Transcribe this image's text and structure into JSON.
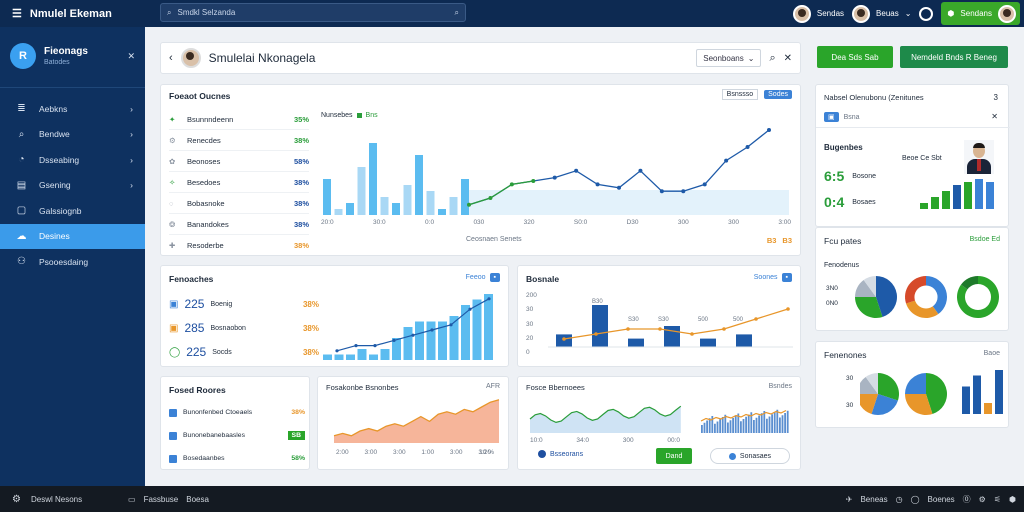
{
  "topbar": {
    "app_title": "Nmulel Ekeman",
    "search_placeholder": "Smdkl Selzanda",
    "user1": "Sendas",
    "user2": "Beuas",
    "green_button": "Sendans"
  },
  "sidebar": {
    "brand_title": "Fieonags",
    "brand_sub": "Batodes",
    "items": [
      {
        "label": "Aebkns",
        "icon": "layers-icon"
      },
      {
        "label": "Bendwe",
        "icon": "search-icon"
      },
      {
        "label": "Dsseabing",
        "icon": "gauge-icon"
      },
      {
        "label": "Gsening",
        "icon": "briefcase-icon"
      },
      {
        "label": "Galssiognb",
        "icon": "monitor-icon"
      },
      {
        "label": "Desines",
        "icon": "cloud-icon"
      },
      {
        "label": "Psooesdaing",
        "icon": "users-icon"
      }
    ]
  },
  "header": {
    "title": "Smulelai Nkonagela",
    "select_label": "Seonboans",
    "btn1": "Dea Sds Sab",
    "btn2": "Nemdeld Bnds R Beneg"
  },
  "overview": {
    "title": "Foeaot Oucnes",
    "chip1": "Bsnssso",
    "chip2": "Sodes",
    "rows": [
      {
        "label": "Bsunnndeenn",
        "value": "35%",
        "color": "#2a9d3a"
      },
      {
        "label": "Renecdes",
        "value": "38%",
        "color": "#2a9d3a"
      },
      {
        "label": "Beonoses",
        "value": "58%",
        "color": "#1e4fa0"
      },
      {
        "label": "Besedoes",
        "value": "38%",
        "color": "#1e4fa0"
      },
      {
        "label": "Bobasnoke",
        "value": "38%",
        "color": "#1e4fa0"
      },
      {
        "label": "Banandokes",
        "value": "38%",
        "color": "#1e4fa0"
      },
      {
        "label": "Resoderbe",
        "value": "38%",
        "color": "#e8962a"
      }
    ],
    "legend_a": "Nunsebes",
    "legend_b": "Bns",
    "xlabels": [
      "20:0",
      "30:0",
      "0:0",
      "030",
      "320",
      "S0:0",
      "D30",
      "300",
      "300",
      "3:00"
    ],
    "footer_label": "Ceosnaen Senets",
    "footer_values": [
      "B3",
      "B3"
    ]
  },
  "main_chart": {
    "bars": [
      6,
      1,
      2,
      8,
      12,
      3,
      2,
      5,
      10,
      4,
      1,
      3,
      6
    ],
    "line": [
      3,
      5,
      9,
      10,
      11,
      13,
      9,
      8,
      13,
      7,
      7,
      9,
      16,
      20,
      25
    ]
  },
  "stats": {
    "title": "Fenoaches",
    "chip": "Feeoo",
    "rows": [
      {
        "value": "225",
        "label": "Boenig",
        "pct": "38%",
        "pct_color": "#e8962a"
      },
      {
        "value": "285",
        "label": "Bosnaobon",
        "pct": "38%",
        "pct_color": "#e8962a"
      },
      {
        "value": "225",
        "label": "Socds",
        "pct": "38%",
        "pct_color": "#e8962a"
      }
    ],
    "bars": [
      1,
      1,
      1,
      2,
      1,
      2,
      4,
      6,
      7,
      7,
      7,
      8,
      10,
      11,
      12
    ],
    "line": [
      1,
      2,
      2,
      3,
      4,
      5,
      6,
      9,
      11
    ]
  },
  "combo": {
    "title": "Bosnale",
    "chip": "Soones",
    "ylabels": [
      "200",
      "30",
      "30",
      "20",
      "0"
    ],
    "bar_labels": [
      "B30",
      "S30",
      "S30",
      "500",
      "500"
    ],
    "bars": [
      3,
      10,
      2,
      5,
      2,
      3
    ],
    "line": [
      2,
      3,
      4,
      4,
      3,
      4,
      6,
      8
    ]
  },
  "list": {
    "title": "Fosed Roores",
    "items": [
      {
        "label": "Bunonfenbed Ctoeaels",
        "value": "38%",
        "value_color": "#e8962a"
      },
      {
        "label": "Bunonebanebaasles",
        "value": "SB",
        "value_color": "#fff",
        "badge": true
      },
      {
        "label": "Bosedaanbes",
        "value": "58%",
        "value_color": "#2a9d3a"
      }
    ]
  },
  "area": {
    "title": "Fosakonbe Bsnonbes",
    "chip": "AFR",
    "xlabels": [
      "2:00",
      "3:00",
      "3:00",
      "1:00",
      "3:00",
      "3:20"
    ],
    "footer": "10 %",
    "values": [
      3,
      4,
      3,
      5,
      6,
      5,
      7,
      8,
      7,
      9,
      11,
      9,
      12,
      13,
      12,
      14,
      13,
      15,
      17,
      18
    ]
  },
  "waves": {
    "title": "Fosce Bbernoees",
    "chip": "Bsndes",
    "xlabels": [
      "10:0",
      "34:0",
      "300",
      "00:0"
    ],
    "legend": "Bsseorans",
    "btn_green": "Dand",
    "btn_outline": "Sonasaes"
  },
  "side_top": {
    "title": "Nabsel Olenubonu (Zenitunes",
    "count": "3",
    "chip": "Bsna",
    "subtitle": "Bugenbes",
    "person_label": "Beoe Ce Sbt",
    "metrics": [
      {
        "value": "6:5",
        "label": "Bosone"
      },
      {
        "value": "0:4",
        "label": "Bosaes"
      }
    ],
    "bars": [
      2,
      4,
      6,
      8,
      9,
      10,
      9
    ]
  },
  "side_mid": {
    "title": "Fcu pates",
    "chip": "Bsdoe Ed",
    "subtitle": "Fenodenus",
    "labels": [
      "3N0",
      "0N0"
    ]
  },
  "side_bot": {
    "title": "Fenenones",
    "chip": "Baoe",
    "labels": [
      "30",
      "30"
    ],
    "bars": [
      5,
      7,
      2,
      8
    ]
  },
  "taskbar": {
    "item1": "Deswl Nesons",
    "item2": "Fassbuse",
    "item3": "Boesa",
    "item4": "Beneas",
    "item5": "Boenes"
  }
}
